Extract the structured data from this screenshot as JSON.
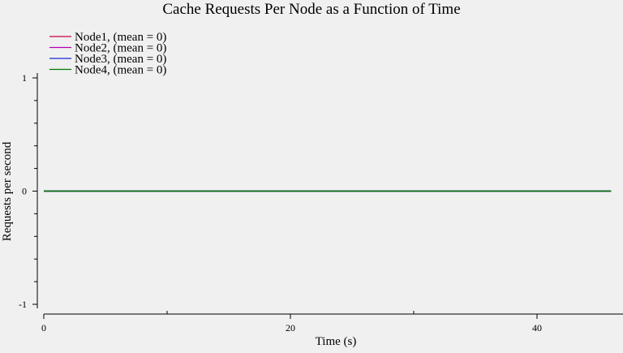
{
  "chart_data": {
    "type": "line",
    "title": "Cache Requests Per Node as a Function of Time",
    "xlabel": "Time (s)",
    "ylabel": "Requests per second",
    "xlim": [
      0,
      46.5
    ],
    "ylim": [
      -1,
      1
    ],
    "x_ticks": [
      0,
      20,
      40
    ],
    "x_minor_ticks": [
      10,
      30
    ],
    "y_ticks": [
      -1,
      0,
      1
    ],
    "y_minor_step": 0.2,
    "grid": false,
    "legend_position": "top-left",
    "series": [
      {
        "name": "Node1, (mean = 0)",
        "color": "#c8003c",
        "x": [
          0,
          46
        ],
        "y": [
          0,
          0
        ]
      },
      {
        "name": "Node2, (mean = 0)",
        "color": "#b400b4",
        "x": [
          0,
          46
        ],
        "y": [
          0,
          0
        ]
      },
      {
        "name": "Node3, (mean = 0)",
        "color": "#1428dc",
        "x": [
          0,
          46
        ],
        "y": [
          0,
          0
        ]
      },
      {
        "name": "Node4, (mean = 0)",
        "color": "#007800",
        "x": [
          0,
          46
        ],
        "y": [
          0,
          0
        ]
      }
    ]
  }
}
